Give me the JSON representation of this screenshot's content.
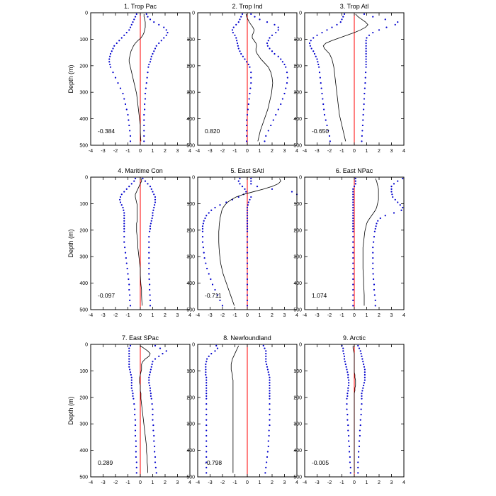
{
  "figure": {
    "ylabel": "Depth (m)",
    "xlim": [
      -4,
      4
    ],
    "ylim": [
      0,
      500
    ],
    "y_inverted": true,
    "xticks": [
      -4,
      -3,
      -2,
      -1,
      0,
      1,
      2,
      3,
      4
    ],
    "yticks": [
      0,
      100,
      200,
      300,
      400,
      500
    ],
    "colors": {
      "mean_line": "#000000",
      "bounds": "#0000cc",
      "zero_line": "#ff0000",
      "frame": "#000000"
    }
  },
  "chart_data": [
    {
      "type": "line",
      "title": "1. Trop Pac",
      "annotation": "-0.384",
      "depth": [
        5,
        15,
        25,
        35,
        45,
        55,
        65,
        75,
        85,
        95,
        105,
        115,
        125,
        135,
        145,
        155,
        165,
        175,
        185,
        195,
        205,
        225,
        245,
        265,
        285,
        305,
        325,
        345,
        365,
        385,
        405,
        425,
        445,
        465,
        485
      ],
      "mean": [
        0.3,
        0.3,
        0.35,
        0.4,
        0.4,
        0.4,
        0.35,
        0.3,
        0.2,
        0.05,
        -0.2,
        -0.4,
        -0.55,
        -0.65,
        -0.75,
        -0.8,
        -0.85,
        -0.9,
        -0.9,
        -0.85,
        -0.8,
        -0.7,
        -0.6,
        -0.5,
        -0.4,
        -0.3,
        -0.25,
        -0.2,
        -0.15,
        -0.1,
        -0.05,
        0,
        0,
        0.02,
        0.05
      ],
      "lower": [
        -0.3,
        -0.4,
        -0.5,
        -0.6,
        -0.7,
        -0.8,
        -0.9,
        -1.1,
        -1.3,
        -1.5,
        -1.7,
        -1.9,
        -2.1,
        -2.2,
        -2.3,
        -2.4,
        -2.45,
        -2.5,
        -2.5,
        -2.45,
        -2.4,
        -2.2,
        -2.0,
        -1.8,
        -1.6,
        -1.4,
        -1.3,
        -1.2,
        -1.1,
        -1.0,
        -0.95,
        -0.9,
        -0.85,
        -0.8,
        -0.8
      ],
      "upper": [
        0.5,
        0.6,
        0.8,
        1.1,
        1.5,
        1.9,
        2.1,
        2.2,
        2.1,
        1.9,
        1.7,
        1.5,
        1.3,
        1.2,
        1.1,
        1.0,
        0.9,
        0.85,
        0.8,
        0.7,
        0.65,
        0.6,
        0.55,
        0.5,
        0.45,
        0.4,
        0.4,
        0.35,
        0.35,
        0.3,
        0.3,
        0.3,
        0.3,
        0.3,
        0.3
      ]
    },
    {
      "type": "line",
      "title": "2. Trop Ind",
      "annotation": "0.820",
      "depth": [
        5,
        15,
        25,
        35,
        45,
        55,
        65,
        75,
        85,
        95,
        105,
        115,
        125,
        135,
        145,
        155,
        165,
        175,
        185,
        195,
        205,
        225,
        245,
        265,
        285,
        305,
        325,
        345,
        365,
        385,
        405,
        425,
        445,
        465,
        485
      ],
      "mean": [
        -0.1,
        -0.05,
        0.05,
        0.15,
        0.3,
        0.45,
        0.55,
        0.5,
        0.4,
        0.4,
        0.55,
        0.7,
        0.75,
        0.7,
        0.7,
        0.8,
        0.95,
        1.1,
        1.3,
        1.5,
        1.7,
        1.9,
        2.0,
        2.05,
        2.0,
        1.95,
        1.85,
        1.75,
        1.65,
        1.5,
        1.35,
        1.2,
        1.05,
        0.95,
        0.85
      ],
      "lower": [
        -0.4,
        -0.5,
        -0.6,
        -0.7,
        -0.9,
        -1.1,
        -1.2,
        -1.15,
        -1.0,
        -0.9,
        -0.85,
        -0.8,
        -0.75,
        -0.7,
        -0.6,
        -0.5,
        -0.35,
        -0.2,
        -0.05,
        0.1,
        0.2,
        0.3,
        0.3,
        0.3,
        0.25,
        0.2,
        0.15,
        0.1,
        0.05,
        0,
        -0.05,
        -0.05,
        -0.05,
        -0.05,
        -0.05
      ],
      "upper": [
        0.3,
        0.6,
        1.0,
        1.6,
        2.2,
        2.5,
        2.5,
        2.3,
        2.0,
        1.8,
        1.7,
        1.6,
        1.65,
        1.8,
        2.0,
        2.2,
        2.5,
        2.7,
        2.85,
        3.0,
        3.1,
        3.2,
        3.25,
        3.2,
        3.1,
        3.0,
        2.85,
        2.7,
        2.5,
        2.3,
        2.1,
        1.9,
        1.7,
        1.5,
        1.4
      ]
    },
    {
      "type": "line",
      "title": "3. Trop Atl",
      "annotation": "-0.650",
      "depth": [
        5,
        15,
        25,
        35,
        45,
        55,
        65,
        75,
        85,
        95,
        105,
        115,
        125,
        135,
        145,
        155,
        165,
        175,
        185,
        195,
        205,
        225,
        245,
        265,
        285,
        305,
        325,
        345,
        365,
        385,
        405,
        425,
        445,
        465,
        485
      ],
      "mean": [
        0.1,
        0.3,
        0.6,
        0.9,
        1.1,
        0.9,
        0.5,
        0.0,
        -0.6,
        -1.2,
        -1.8,
        -2.3,
        -2.5,
        -2.4,
        -2.2,
        -2.0,
        -1.9,
        -1.8,
        -1.75,
        -1.7,
        -1.65,
        -1.6,
        -1.55,
        -1.5,
        -1.45,
        -1.4,
        -1.35,
        -1.3,
        -1.25,
        -1.2,
        -1.1,
        -1.0,
        -0.9,
        -0.8,
        -0.7
      ],
      "lower": [
        -0.8,
        -0.9,
        -1.0,
        -1.1,
        -1.4,
        -1.8,
        -2.2,
        -2.6,
        -3.0,
        -3.3,
        -3.5,
        -3.6,
        -3.55,
        -3.45,
        -3.3,
        -3.2,
        -3.1,
        -3.0,
        -2.95,
        -2.9,
        -2.85,
        -2.8,
        -2.75,
        -2.7,
        -2.65,
        -2.6,
        -2.55,
        -2.5,
        -2.45,
        -2.4,
        -2.3,
        -2.2,
        -2.1,
        -2.0,
        -1.95
      ],
      "upper": [
        0.8,
        1.5,
        2.5,
        3.5,
        3.3,
        2.6,
        2.0,
        1.5,
        1.2,
        1.0,
        0.95,
        0.95,
        0.95,
        0.95,
        0.95,
        0.95,
        0.95,
        0.95,
        0.95,
        0.95,
        0.95,
        0.92,
        0.9,
        0.88,
        0.85,
        0.82,
        0.8,
        0.78,
        0.75,
        0.72,
        0.7,
        0.68,
        0.65,
        0.62,
        0.6
      ]
    },
    {
      "type": "line",
      "title": "4. Maritime Con",
      "annotation": "-0.097",
      "depth": [
        5,
        15,
        25,
        35,
        45,
        55,
        65,
        75,
        85,
        95,
        105,
        115,
        125,
        135,
        145,
        155,
        165,
        175,
        185,
        195,
        205,
        225,
        245,
        265,
        285,
        305,
        325,
        345,
        365,
        385,
        405,
        425,
        445,
        465,
        485
      ],
      "mean": [
        0.1,
        0.1,
        0.0,
        -0.1,
        -0.2,
        -0.3,
        -0.4,
        -0.4,
        -0.35,
        -0.3,
        -0.25,
        -0.25,
        -0.25,
        -0.25,
        -0.25,
        -0.25,
        -0.25,
        -0.3,
        -0.3,
        -0.3,
        -0.3,
        -0.25,
        -0.2,
        -0.2,
        -0.15,
        -0.1,
        -0.05,
        0,
        0,
        0.02,
        0.05,
        0.1,
        0.1,
        0.12,
        0.15
      ],
      "lower": [
        -0.4,
        -0.5,
        -0.7,
        -0.9,
        -1.1,
        -1.3,
        -1.5,
        -1.6,
        -1.65,
        -1.6,
        -1.5,
        -1.4,
        -1.35,
        -1.3,
        -1.3,
        -1.3,
        -1.3,
        -1.3,
        -1.3,
        -1.3,
        -1.3,
        -1.3,
        -1.3,
        -1.25,
        -1.2,
        -1.15,
        -1.1,
        -1.05,
        -1.0,
        -0.95,
        -0.9,
        -0.9,
        -0.85,
        -0.85,
        -0.8
      ],
      "upper": [
        0.2,
        0.4,
        0.6,
        0.8,
        0.9,
        1.0,
        1.1,
        1.2,
        1.2,
        1.2,
        1.15,
        1.1,
        1.05,
        1.0,
        1.0,
        0.95,
        0.9,
        0.85,
        0.8,
        0.8,
        0.75,
        0.7,
        0.7,
        0.7,
        0.7,
        0.7,
        0.7,
        0.7,
        0.7,
        0.72,
        0.75,
        0.75,
        0.78,
        0.8,
        0.8
      ]
    },
    {
      "type": "line",
      "title": "5. East SAtl",
      "annotation": "-0.711",
      "depth": [
        5,
        15,
        25,
        35,
        45,
        55,
        65,
        75,
        85,
        95,
        105,
        115,
        125,
        135,
        145,
        155,
        165,
        175,
        185,
        195,
        205,
        225,
        245,
        265,
        285,
        305,
        325,
        345,
        365,
        385,
        405,
        425,
        445,
        465,
        485
      ],
      "mean": [
        2.6,
        2.7,
        2.5,
        2.0,
        1.3,
        0.5,
        -0.3,
        -0.9,
        -1.3,
        -1.6,
        -1.8,
        -1.95,
        -2.05,
        -2.1,
        -2.15,
        -2.2,
        -2.22,
        -2.25,
        -2.27,
        -2.28,
        -2.3,
        -2.3,
        -2.3,
        -2.28,
        -2.25,
        -2.2,
        -2.15,
        -2.05,
        -1.95,
        -1.8,
        -1.65,
        -1.5,
        -1.35,
        -1.2,
        -1.05
      ],
      "lower": [
        -0.6,
        -0.7,
        -0.6,
        -0.4,
        -0.2,
        -0.1,
        -0.3,
        -0.7,
        -1.2,
        -1.7,
        -2.2,
        -2.6,
        -2.9,
        -3.1,
        -3.3,
        -3.4,
        -3.5,
        -3.55,
        -3.6,
        -3.6,
        -3.6,
        -3.6,
        -3.6,
        -3.55,
        -3.5,
        -3.45,
        -3.35,
        -3.25,
        -3.1,
        -2.95,
        -2.8,
        -2.6,
        -2.4,
        -2.2,
        -2.0
      ],
      "upper": [
        0.3,
        0.3,
        0.3,
        0.8,
        2.0,
        3.6,
        4.0,
        0.3,
        0.2,
        0.1,
        0.05,
        0,
        0,
        0,
        0,
        0,
        0,
        0,
        0,
        0,
        0,
        0,
        0,
        0,
        0,
        0,
        0,
        0,
        0,
        0,
        0,
        0,
        0,
        0,
        0
      ]
    },
    {
      "type": "line",
      "title": "6. East NPac",
      "annotation": "1.074",
      "depth": [
        5,
        15,
        25,
        35,
        45,
        55,
        65,
        75,
        85,
        95,
        105,
        115,
        125,
        135,
        145,
        155,
        165,
        175,
        185,
        195,
        205,
        225,
        245,
        265,
        285,
        305,
        325,
        345,
        365,
        385,
        405,
        425,
        445,
        465,
        485
      ],
      "mean": [
        1.7,
        1.8,
        1.85,
        1.9,
        1.95,
        1.95,
        1.95,
        1.95,
        1.95,
        1.9,
        1.85,
        1.8,
        1.7,
        1.55,
        1.4,
        1.25,
        1.1,
        1.0,
        0.95,
        0.9,
        0.85,
        0.8,
        0.75,
        0.7,
        0.7,
        0.7,
        0.7,
        0.7,
        0.72,
        0.75,
        0.75,
        0.78,
        0.8,
        0.8,
        0.8
      ],
      "lower": [
        0.1,
        0.1,
        0.1,
        0.0,
        -0.1,
        -0.1,
        -0.1,
        -0.1,
        -0.1,
        -0.1,
        -0.1,
        -0.1,
        -0.1,
        -0.1,
        -0.1,
        -0.1,
        -0.1,
        -0.1,
        -0.1,
        -0.1,
        -0.1,
        -0.1,
        -0.1,
        -0.1,
        -0.1,
        -0.1,
        -0.1,
        -0.1,
        -0.1,
        -0.1,
        -0.1,
        -0.1,
        -0.1,
        -0.1,
        -0.1
      ],
      "upper": [
        3.9,
        3.5,
        3.2,
        3.0,
        3.0,
        3.0,
        3.05,
        3.1,
        3.3,
        3.5,
        3.7,
        3.9,
        3.8,
        3.2,
        2.5,
        2.1,
        1.9,
        1.8,
        1.75,
        1.7,
        1.65,
        1.6,
        1.55,
        1.5,
        1.5,
        1.5,
        1.5,
        1.5,
        1.52,
        1.55,
        1.6,
        1.6,
        1.65,
        1.7,
        1.7
      ]
    },
    {
      "type": "line",
      "title": "7. East SPac",
      "annotation": "0.289",
      "depth": [
        5,
        15,
        25,
        35,
        45,
        55,
        65,
        75,
        85,
        95,
        105,
        115,
        125,
        135,
        145,
        155,
        165,
        175,
        185,
        195,
        205,
        225,
        245,
        265,
        285,
        305,
        325,
        345,
        365,
        385,
        405,
        425,
        445,
        465,
        485
      ],
      "mean": [
        0.0,
        0.3,
        0.6,
        0.8,
        0.7,
        0.4,
        0.2,
        0.1,
        0.1,
        0.1,
        0.05,
        0,
        -0.05,
        -0.05,
        -0.05,
        0,
        0,
        0,
        0.05,
        0.05,
        0.05,
        0.1,
        0.15,
        0.2,
        0.25,
        0.3,
        0.35,
        0.4,
        0.45,
        0.5,
        0.5,
        0.55,
        0.55,
        0.6,
        0.6
      ],
      "lower": [
        -0.8,
        -0.9,
        -0.9,
        -0.9,
        -0.9,
        -0.9,
        -0.9,
        -0.9,
        -0.9,
        -0.85,
        -0.8,
        -0.75,
        -0.7,
        -0.7,
        -0.7,
        -0.7,
        -0.7,
        -0.65,
        -0.6,
        -0.6,
        -0.55,
        -0.5,
        -0.45,
        -0.45,
        -0.4,
        -0.4,
        -0.4,
        -0.4,
        -0.35,
        -0.35,
        -0.35,
        -0.35,
        -0.3,
        -0.3,
        -0.3
      ],
      "upper": [
        1.2,
        1.6,
        2.1,
        1.8,
        1.5,
        1.2,
        1.0,
        0.95,
        0.9,
        0.85,
        0.8,
        0.75,
        0.7,
        0.7,
        0.7,
        0.75,
        0.8,
        0.8,
        0.85,
        0.85,
        0.9,
        0.95,
        1.0,
        1.0,
        1.0,
        1.05,
        1.05,
        1.1,
        1.1,
        1.15,
        1.15,
        1.2,
        1.2,
        1.25,
        1.3
      ]
    },
    {
      "type": "line",
      "title": "8. Newfoundland",
      "annotation": "-0.798",
      "depth": [
        5,
        15,
        25,
        35,
        45,
        55,
        65,
        75,
        85,
        95,
        105,
        115,
        125,
        135,
        145,
        155,
        165,
        175,
        185,
        195,
        205,
        225,
        245,
        265,
        285,
        305,
        325,
        345,
        365,
        385,
        405,
        425,
        445,
        465,
        485
      ],
      "mean": [
        -0.7,
        -0.8,
        -0.9,
        -1.0,
        -1.1,
        -1.2,
        -1.25,
        -1.3,
        -1.3,
        -1.3,
        -1.25,
        -1.2,
        -1.2,
        -1.15,
        -1.15,
        -1.15,
        -1.15,
        -1.15,
        -1.15,
        -1.15,
        -1.15,
        -1.15,
        -1.15,
        -1.15,
        -1.15,
        -1.15,
        -1.15,
        -1.15,
        -1.15,
        -1.15,
        -1.15,
        -1.15,
        -1.15,
        -1.15,
        -1.15
      ],
      "lower": [
        -2.5,
        -2.4,
        -2.6,
        -2.9,
        -3.1,
        -3.25,
        -3.3,
        -3.35,
        -3.35,
        -3.35,
        -3.35,
        -3.35,
        -3.3,
        -3.3,
        -3.3,
        -3.3,
        -3.3,
        -3.3,
        -3.3,
        -3.3,
        -3.3,
        -3.3,
        -3.3,
        -3.3,
        -3.3,
        -3.3,
        -3.3,
        -3.3,
        -3.3,
        -3.3,
        -3.3,
        -3.3,
        -3.3,
        -3.3,
        -3.3
      ],
      "upper": [
        1.3,
        1.4,
        1.5,
        1.5,
        1.5,
        1.5,
        1.5,
        1.55,
        1.6,
        1.65,
        1.7,
        1.75,
        1.8,
        1.8,
        1.8,
        1.8,
        1.8,
        1.8,
        1.8,
        1.8,
        1.8,
        1.8,
        1.8,
        1.8,
        1.8,
        1.8,
        1.75,
        1.75,
        1.7,
        1.7,
        1.65,
        1.6,
        1.55,
        1.5,
        1.45
      ]
    },
    {
      "type": "line",
      "title": "9. Arctic",
      "annotation": "-0.005",
      "depth": [
        5,
        15,
        25,
        35,
        45,
        55,
        65,
        75,
        85,
        95,
        105,
        115,
        125,
        135,
        145,
        155,
        165,
        175,
        185,
        195,
        205,
        225,
        245,
        265,
        285,
        305,
        325,
        345,
        365,
        385,
        405,
        425,
        445,
        465,
        485
      ],
      "mean": [
        -0.1,
        -0.1,
        -0.05,
        0,
        0,
        0,
        0,
        0,
        0,
        0,
        0,
        0.05,
        0.05,
        0.1,
        0.1,
        0.1,
        0.05,
        0.05,
        0,
        0,
        0,
        0,
        0,
        0,
        0,
        0,
        0,
        0,
        0,
        0,
        0,
        0,
        0,
        0,
        0
      ],
      "lower": [
        -1.0,
        -0.9,
        -0.9,
        -0.85,
        -0.8,
        -0.8,
        -0.75,
        -0.7,
        -0.65,
        -0.6,
        -0.55,
        -0.5,
        -0.5,
        -0.45,
        -0.45,
        -0.45,
        -0.5,
        -0.5,
        -0.55,
        -0.55,
        -0.6,
        -0.6,
        -0.6,
        -0.55,
        -0.55,
        -0.5,
        -0.5,
        -0.45,
        -0.45,
        -0.4,
        -0.4,
        -0.35,
        -0.35,
        -0.3,
        -0.3
      ],
      "upper": [
        0.3,
        0.4,
        0.5,
        0.55,
        0.6,
        0.65,
        0.7,
        0.75,
        0.8,
        0.85,
        0.85,
        0.85,
        0.85,
        0.85,
        0.8,
        0.75,
        0.7,
        0.65,
        0.6,
        0.6,
        0.6,
        0.6,
        0.55,
        0.55,
        0.5,
        0.5,
        0.45,
        0.45,
        0.4,
        0.4,
        0.35,
        0.35,
        0.3,
        0.3,
        0.3
      ]
    }
  ]
}
